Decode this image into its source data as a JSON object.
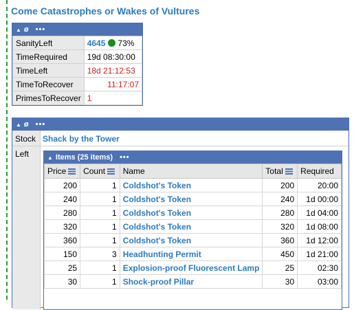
{
  "title": "Come Catastrophes or Wakes of Vultures",
  "panel_header": {
    "symbol": "ø",
    "menu": "•••"
  },
  "stats": [
    {
      "key": "SanityLeft",
      "value": "4645",
      "percent": "73%"
    },
    {
      "key": "TimeRequired",
      "value": "19d 08:30:00"
    },
    {
      "key": "TimeLeft",
      "value": "18d 21:12:53"
    },
    {
      "key": "TimeToRecover",
      "value": "11:17:07"
    },
    {
      "key": "PrimesToRecover",
      "value": "1"
    }
  ],
  "stock": {
    "stock_label": "Stock",
    "stock_value": "Shack by the Tower",
    "left_label": "Left",
    "items_header": "Items (25 items)",
    "columns": [
      "Price",
      "Count",
      "Name",
      "Total",
      "Required"
    ],
    "rows": [
      {
        "price": "200",
        "count": "1",
        "name": "Coldshot's Token",
        "total": "200",
        "required": "20:00"
      },
      {
        "price": "240",
        "count": "1",
        "name": "Coldshot's Token",
        "total": "240",
        "required": "1d 00:00"
      },
      {
        "price": "280",
        "count": "1",
        "name": "Coldshot's Token",
        "total": "280",
        "required": "1d 04:00"
      },
      {
        "price": "320",
        "count": "1",
        "name": "Coldshot's Token",
        "total": "320",
        "required": "1d 08:00"
      },
      {
        "price": "360",
        "count": "1",
        "name": "Coldshot's Token",
        "total": "360",
        "required": "1d 12:00"
      },
      {
        "price": "150",
        "count": "3",
        "name": "Headhunting Permit",
        "total": "450",
        "required": "1d 21:00"
      },
      {
        "price": "25",
        "count": "1",
        "name": "Explosion-proof Fluorescent Lamp",
        "total": "25",
        "required": "02:30"
      },
      {
        "price": "30",
        "count": "1",
        "name": "Shock-proof Pillar",
        "total": "30",
        "required": "03:00"
      }
    ]
  },
  "colors": {
    "accent": "#2b7bbf",
    "header": "#4e72b4",
    "danger": "#d02020",
    "ok": "#1a8c1a",
    "dashed_line": "#2a9a3a"
  }
}
